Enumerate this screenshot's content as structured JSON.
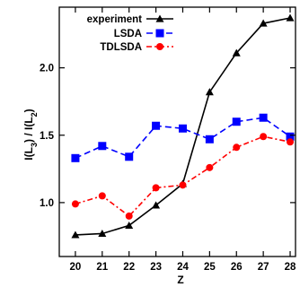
{
  "chart_data": {
    "type": "line",
    "xlabel": "Z",
    "ylabel": "I(L3) / I(L2)",
    "ylabel_parts": {
      "prefix": "I(L",
      "sub1": "3",
      "mid": ") / I(L",
      "sub2": "2",
      "suffix": ")"
    },
    "x": [
      20,
      21,
      22,
      23,
      24,
      25,
      26,
      27,
      28
    ],
    "xlim": [
      19.4,
      28.2
    ],
    "ylim": [
      0.6,
      2.45
    ],
    "xticks": [
      "20",
      "21",
      "22",
      "23",
      "24",
      "25",
      "26",
      "27",
      "28"
    ],
    "yticks": [
      "1.0",
      "1.5",
      "2.0"
    ],
    "ytick_values": [
      1.0,
      1.5,
      2.0
    ],
    "grid": false,
    "legend_position": "top-left",
    "series": [
      {
        "name": "experiment",
        "color": "#000000",
        "marker": "triangle",
        "dash": "solid",
        "values": [
          0.76,
          0.77,
          0.83,
          0.98,
          1.14,
          1.82,
          2.11,
          2.33,
          2.37
        ]
      },
      {
        "name": "LSDA",
        "color": "#0000ff",
        "marker": "square",
        "dash": "dashed",
        "values": [
          1.33,
          1.42,
          1.34,
          1.57,
          1.55,
          1.47,
          1.6,
          1.63,
          1.49
        ]
      },
      {
        "name": "TDLSDA",
        "color": "#ff0000",
        "marker": "circle",
        "dash": "dash-dot",
        "values": [
          0.99,
          1.05,
          0.9,
          1.11,
          1.13,
          1.26,
          1.41,
          1.49,
          1.45
        ]
      }
    ]
  }
}
